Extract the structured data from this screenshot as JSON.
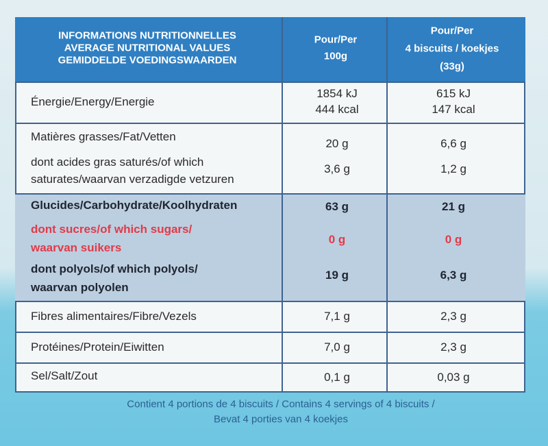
{
  "header": {
    "title": [
      "INFORMATIONS NUTRITIONNELLES",
      "AVERAGE NUTRITIONAL VALUES",
      "GEMIDDELDE VOEDINGSWAARDEN"
    ],
    "per_100g": [
      "Pour/Per",
      "100g"
    ],
    "per_portion": [
      "Pour/Per",
      "4 biscuits / koekjes",
      "(33g)"
    ]
  },
  "nutrients": [
    {
      "label": [
        "Énergie/Energy/Energie"
      ],
      "per_100g": [
        "1854 kJ",
        "444 kcal"
      ],
      "per_portion": [
        "615 kJ",
        "147 kcal"
      ]
    },
    {
      "label": [
        "Matières grasses/Fat/Vetten"
      ],
      "per_100g": [
        "20 g"
      ],
      "per_portion": [
        "6,6 g"
      ]
    },
    {
      "label": [
        "dont acides gras saturés/of which",
        "saturates/waarvan verzadigde vetzuren"
      ],
      "per_100g": [
        "3,6 g"
      ],
      "per_portion": [
        "1,2 g"
      ]
    },
    {
      "label": [
        "Glucides/Carbohydrate/Koolhydraten"
      ],
      "per_100g": [
        "63 g"
      ],
      "per_portion": [
        "21 g"
      ]
    },
    {
      "label": [
        "dont sucres/of which sugars/",
        "waarvan suikers"
      ],
      "per_100g": [
        "0 g"
      ],
      "per_portion": [
        "0 g"
      ]
    },
    {
      "label": [
        "dont polyols/of which polyols/",
        "waarvan polyolen"
      ],
      "per_100g": [
        "19 g"
      ],
      "per_portion": [
        "6,3 g"
      ]
    },
    {
      "label": [
        "Fibres alimentaires/Fibre/Vezels"
      ],
      "per_100g": [
        "7,1 g"
      ],
      "per_portion": [
        "2,3 g"
      ]
    },
    {
      "label": [
        "Protéines/Protein/Eiwitten"
      ],
      "per_100g": [
        "7,0 g"
      ],
      "per_portion": [
        "2,3 g"
      ]
    },
    {
      "label": [
        "Sel/Salt/Zout"
      ],
      "per_100g": [
        "0,1 g"
      ],
      "per_portion": [
        "0,03 g"
      ]
    }
  ],
  "footer": [
    "Contient 4 portions de 4 biscuits / Contains 4 servings of 4 biscuits /",
    "Bevat 4 porties van 4 koekjes"
  ]
}
